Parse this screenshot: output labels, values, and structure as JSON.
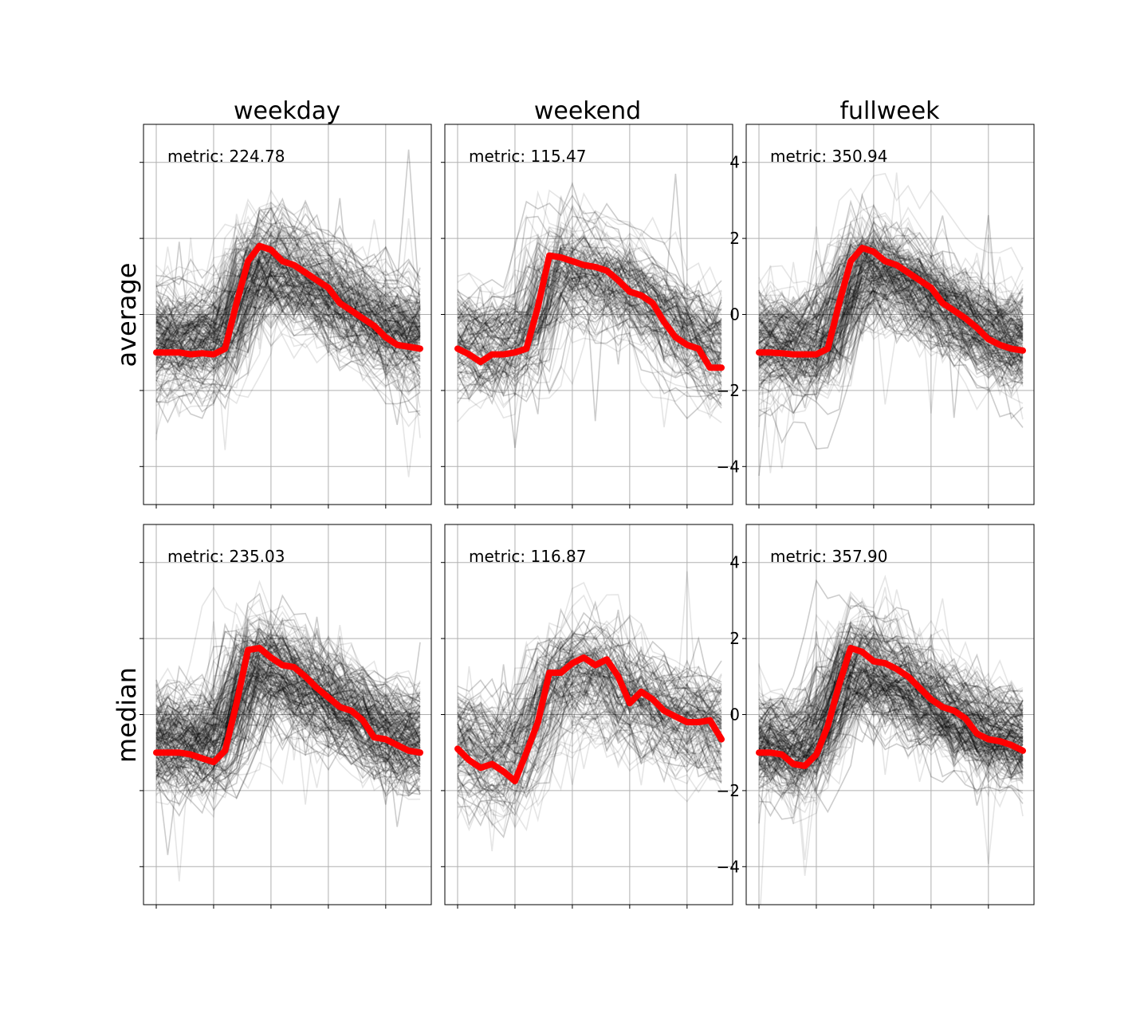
{
  "chart_data": [
    {
      "type": "line",
      "row": "average",
      "column": "weekday",
      "title": "weekday",
      "ylabel": "average",
      "annotation": "metric: 224.78",
      "ylim": [
        -5,
        5
      ],
      "y_ticks": [
        -4,
        -2,
        0,
        2,
        4
      ],
      "y_tick_labels_shown": false,
      "grid": true,
      "background_series_color": "#000000",
      "highlight_series_color": "#ff0000",
      "highlight_series": {
        "x": [
          0,
          1,
          2,
          3,
          4,
          5,
          6,
          7,
          8,
          9,
          10,
          11,
          12,
          13,
          14,
          15,
          16,
          17,
          18,
          19,
          20,
          21,
          22,
          23
        ],
        "values": [
          -1.0,
          -1.0,
          -1.0,
          -1.05,
          -1.02,
          -1.05,
          -0.9,
          0.3,
          1.4,
          1.8,
          1.7,
          1.4,
          1.3,
          1.1,
          0.9,
          0.7,
          0.3,
          0.1,
          -0.1,
          -0.3,
          -0.6,
          -0.8,
          -0.85,
          -0.9
        ]
      }
    },
    {
      "type": "line",
      "row": "average",
      "column": "weekend",
      "title": "weekend",
      "annotation": "metric: 115.47",
      "ylim": [
        -5,
        5
      ],
      "y_ticks": [
        -4,
        -2,
        0,
        2,
        4
      ],
      "y_tick_labels_shown": false,
      "grid": true,
      "background_series_color": "#000000",
      "highlight_series_color": "#ff0000",
      "highlight_series": {
        "x": [
          0,
          1,
          2,
          3,
          4,
          5,
          6,
          7,
          8,
          9,
          10,
          11,
          12,
          13,
          14,
          15,
          16,
          17,
          18,
          19,
          20,
          21,
          22,
          23
        ],
        "values": [
          -0.9,
          -1.05,
          -1.25,
          -1.05,
          -1.05,
          -1.0,
          -0.9,
          0.2,
          1.55,
          1.5,
          1.4,
          1.3,
          1.25,
          1.15,
          0.9,
          0.6,
          0.5,
          0.3,
          -0.2,
          -0.6,
          -0.8,
          -0.9,
          -1.4,
          -1.4
        ]
      }
    },
    {
      "type": "line",
      "row": "average",
      "column": "fullweek",
      "title": "fullweek",
      "annotation": "metric: 350.94",
      "ylim": [
        -5,
        5
      ],
      "y_ticks": [
        -4,
        -2,
        0,
        2,
        4
      ],
      "y_tick_labels": [
        "4",
        "2",
        "0",
        "−2",
        "−4"
      ],
      "grid": true,
      "background_series_color": "#000000",
      "highlight_series_color": "#ff0000",
      "highlight_series": {
        "x": [
          0,
          1,
          2,
          3,
          4,
          5,
          6,
          7,
          8,
          9,
          10,
          11,
          12,
          13,
          14,
          15,
          16,
          17,
          18,
          19,
          20,
          21,
          22,
          23
        ],
        "values": [
          -1.0,
          -1.0,
          -1.02,
          -1.05,
          -1.05,
          -1.05,
          -0.9,
          0.3,
          1.4,
          1.75,
          1.65,
          1.4,
          1.3,
          1.1,
          0.9,
          0.7,
          0.3,
          0.1,
          -0.1,
          -0.35,
          -0.65,
          -0.8,
          -0.9,
          -0.95
        ]
      }
    },
    {
      "type": "line",
      "row": "median",
      "column": "weekday",
      "ylabel": "median",
      "annotation": "metric: 235.03",
      "ylim": [
        -5,
        5
      ],
      "y_ticks": [
        -4,
        -2,
        0,
        2,
        4
      ],
      "y_tick_labels_shown": false,
      "grid": true,
      "background_series_color": "#000000",
      "highlight_series_color": "#ff0000",
      "highlight_series": {
        "x": [
          0,
          1,
          2,
          3,
          4,
          5,
          6,
          7,
          8,
          9,
          10,
          11,
          12,
          13,
          14,
          15,
          16,
          17,
          18,
          19,
          20,
          21,
          22,
          23
        ],
        "values": [
          -1.0,
          -1.0,
          -1.0,
          -1.05,
          -1.15,
          -1.25,
          -0.95,
          0.3,
          1.7,
          1.75,
          1.5,
          1.3,
          1.25,
          1.0,
          0.7,
          0.45,
          0.2,
          0.1,
          -0.15,
          -0.6,
          -0.65,
          -0.8,
          -0.95,
          -1.0
        ]
      }
    },
    {
      "type": "line",
      "row": "median",
      "column": "weekend",
      "annotation": "metric: 116.87",
      "ylim": [
        -5,
        5
      ],
      "y_ticks": [
        -4,
        -2,
        0,
        2,
        4
      ],
      "y_tick_labels_shown": false,
      "grid": true,
      "background_series_color": "#000000",
      "highlight_series_color": "#ff0000",
      "highlight_series": {
        "x": [
          0,
          1,
          2,
          3,
          4,
          5,
          6,
          7,
          8,
          9,
          10,
          11,
          12,
          13,
          14,
          15,
          16,
          17,
          18,
          19,
          20,
          21,
          22,
          23
        ],
        "values": [
          -0.9,
          -1.2,
          -1.4,
          -1.3,
          -1.5,
          -1.75,
          -1.0,
          -0.2,
          1.1,
          1.1,
          1.35,
          1.5,
          1.3,
          1.45,
          1.0,
          0.3,
          0.6,
          0.4,
          0.1,
          -0.05,
          -0.2,
          -0.2,
          -0.15,
          -0.65
        ]
      }
    },
    {
      "type": "line",
      "row": "median",
      "column": "fullweek",
      "annotation": "metric: 357.90",
      "ylim": [
        -5,
        5
      ],
      "y_ticks": [
        -4,
        -2,
        0,
        2,
        4
      ],
      "y_tick_labels": [
        "4",
        "2",
        "0",
        "−2",
        "−4"
      ],
      "grid": true,
      "background_series_color": "#000000",
      "highlight_series_color": "#ff0000",
      "highlight_series": {
        "x": [
          0,
          1,
          2,
          3,
          4,
          5,
          6,
          7,
          8,
          9,
          10,
          11,
          12,
          13,
          14,
          15,
          16,
          17,
          18,
          19,
          20,
          21,
          22,
          23
        ],
        "values": [
          -1.0,
          -1.0,
          -1.05,
          -1.3,
          -1.35,
          -1.05,
          -0.3,
          0.8,
          1.75,
          1.65,
          1.4,
          1.35,
          1.2,
          1.0,
          0.7,
          0.4,
          0.2,
          0.1,
          -0.1,
          -0.5,
          -0.65,
          -0.7,
          -0.8,
          -0.95
        ]
      }
    }
  ]
}
